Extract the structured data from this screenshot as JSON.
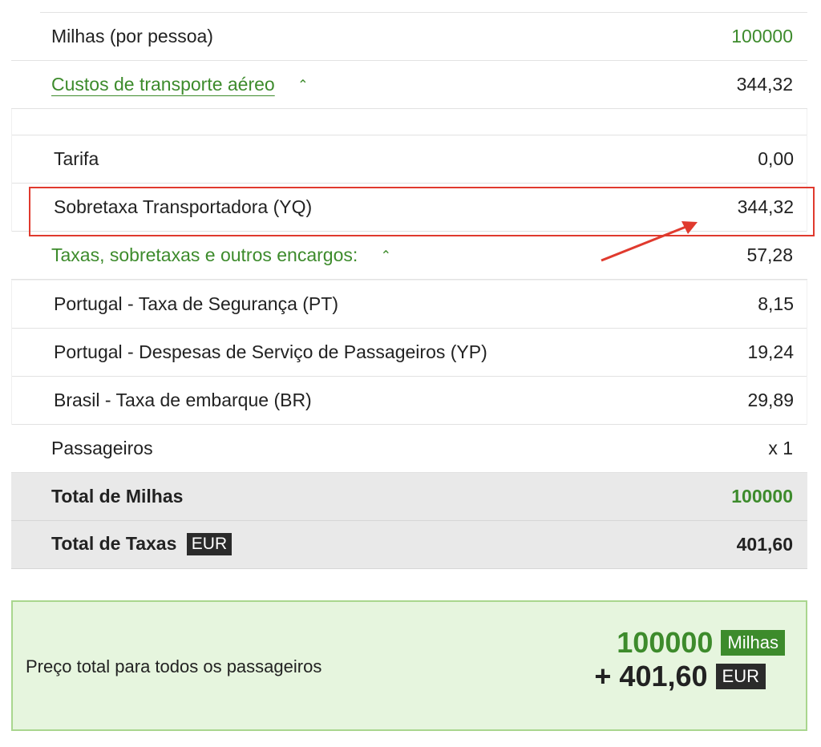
{
  "miles_per_person": {
    "label": "Milhas (por pessoa)",
    "value": "100000"
  },
  "air_costs": {
    "label": "Custos de transporte aéreo",
    "caret": "^",
    "value": "344,32"
  },
  "air_items": [
    {
      "label": "Tarifa",
      "value": "0,00"
    },
    {
      "label": "Sobretaxa Transportadora (YQ)",
      "value": "344,32"
    }
  ],
  "taxes": {
    "label": "Taxas, sobretaxas e outros encargos:",
    "caret": "^",
    "value": "57,28"
  },
  "tax_items": [
    {
      "label": "Portugal - Taxa de Segurança (PT)",
      "value": "8,15"
    },
    {
      "label": "Portugal - Despesas de Serviço de Passageiros (YP)",
      "value": "19,24"
    },
    {
      "label": "Brasil - Taxa de embarque (BR)",
      "value": "29,89"
    }
  ],
  "passengers": {
    "label": "Passageiros",
    "value": "x 1"
  },
  "total_miles": {
    "label": "Total de Milhas",
    "value": "100000"
  },
  "total_taxes": {
    "label": "Total de Taxas",
    "currency": "EUR",
    "value": "401,60"
  },
  "summary": {
    "label": "Preço total para todos os passageiros",
    "miles": "100000",
    "miles_unit": "Milhas",
    "eur": "+ 401,60",
    "eur_unit": "EUR"
  },
  "colors": {
    "accent_green": "#3d8b2c",
    "highlight_red": "#e03a2e",
    "summary_bg": "#e6f5de"
  }
}
